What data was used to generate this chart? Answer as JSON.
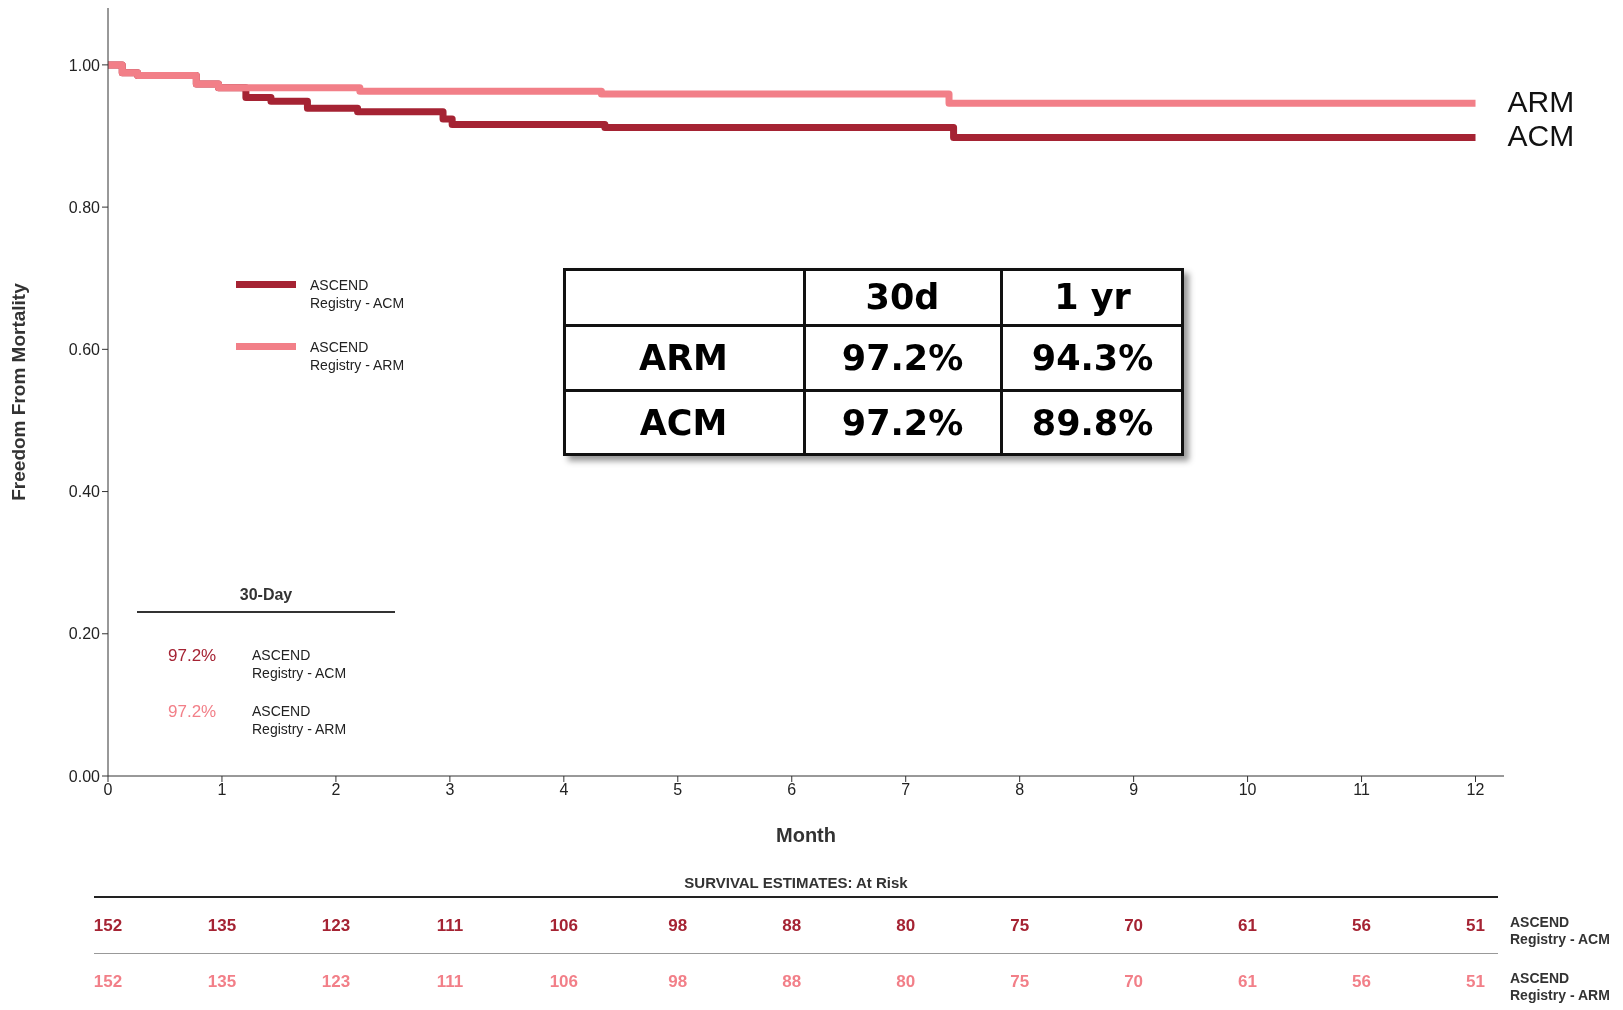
{
  "chart_data": {
    "type": "step",
    "xlabel": "Month",
    "ylabel": "Freedom From Mortality",
    "xlim": [
      0,
      12.25
    ],
    "xticks": [
      0,
      1,
      2,
      3,
      4,
      5,
      6,
      7,
      8,
      9,
      10,
      11,
      12
    ],
    "ylim": [
      0,
      1.08
    ],
    "yticks": [
      {
        "value": 0,
        "label": "0.00"
      },
      {
        "value": 0.2,
        "label": "0.20"
      },
      {
        "value": 0.4,
        "label": "0.40"
      },
      {
        "value": 0.6,
        "label": "0.60"
      },
      {
        "value": 0.8,
        "label": "0.80"
      },
      {
        "value": 1,
        "label": "1.00"
      }
    ],
    "legend": "left",
    "marker": "none",
    "line_style": "solid",
    "series": [
      {
        "name": "ASCEND Registry - ACM",
        "color": "#a52333",
        "x": [
          0,
          0.125,
          0.26,
          0.775,
          0.97,
          1.21,
          1.43,
          1.75,
          2.19,
          2.94,
          3.02,
          4.36,
          7.42,
          12
        ],
        "values": [
          1.0,
          0.989,
          0.985,
          0.973,
          0.968,
          0.954,
          0.949,
          0.939,
          0.934,
          0.924,
          0.916,
          0.912,
          0.898,
          0.898
        ]
      },
      {
        "name": "ASCEND Registry - ARM",
        "color": "#f27f88",
        "x": [
          0,
          0.125,
          0.26,
          0.775,
          0.97,
          2.21,
          4.33,
          7.38,
          12
        ],
        "values": [
          1.0,
          0.989,
          0.985,
          0.973,
          0.968,
          0.963,
          0.959,
          0.946,
          0.946
        ]
      }
    ],
    "annotations": [
      {
        "text": "ARM",
        "x": 12,
        "y": 0.946
      },
      {
        "text": "ACM",
        "x": 12,
        "y": 0.898
      },
      "30d",
      "1 yr",
      "ARM",
      "97.2%",
      "94.3%",
      "ACM",
      "97.2%",
      "89.8%",
      "30-Day",
      "97.2%",
      "ASCEND Registry - ACM",
      "97.2%",
      "ASCEND Registry - ARM",
      "SURVIVAL ESTIMATES: At Risk",
      "152",
      "135",
      "123",
      "111",
      "106",
      "98",
      "88",
      "80",
      "75",
      "70",
      "61",
      "56",
      "51",
      "ASCEND Registry - ACM",
      "152",
      "135",
      "123",
      "111",
      "106",
      "98",
      "88",
      "80",
      "75",
      "70",
      "61",
      "56",
      "51",
      "ASCEND Registry - ARM"
    ]
  }
}
